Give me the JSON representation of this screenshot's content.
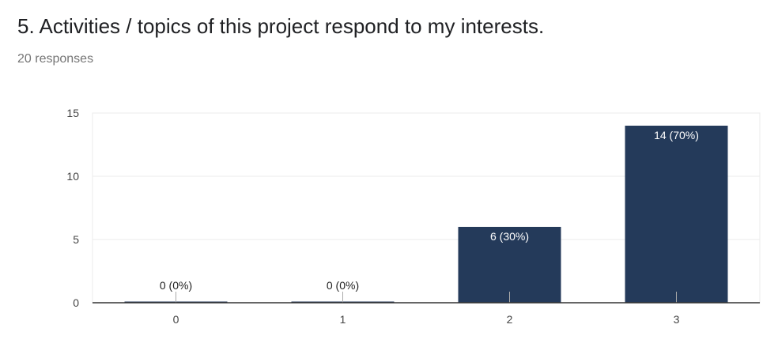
{
  "question": {
    "title": "5. Activities / topics of this project respond to my interests.",
    "responses": "20 responses"
  },
  "colors": {
    "bar": "#243a5a",
    "grid": "#ebebeb",
    "axis": "#333333",
    "tick_text": "#444444",
    "label_outside": "#222222",
    "label_inside": "#ffffff"
  },
  "chart_data": {
    "type": "bar",
    "categories": [
      "0",
      "1",
      "2",
      "3"
    ],
    "values": [
      0,
      0,
      6,
      14
    ],
    "data_labels": [
      "0 (0%)",
      "0 (0%)",
      "6 (30%)",
      "14 (70%)"
    ],
    "ylim": [
      0,
      15
    ],
    "y_ticks": [
      0,
      5,
      10,
      15
    ],
    "grid": true,
    "legend": "none"
  }
}
